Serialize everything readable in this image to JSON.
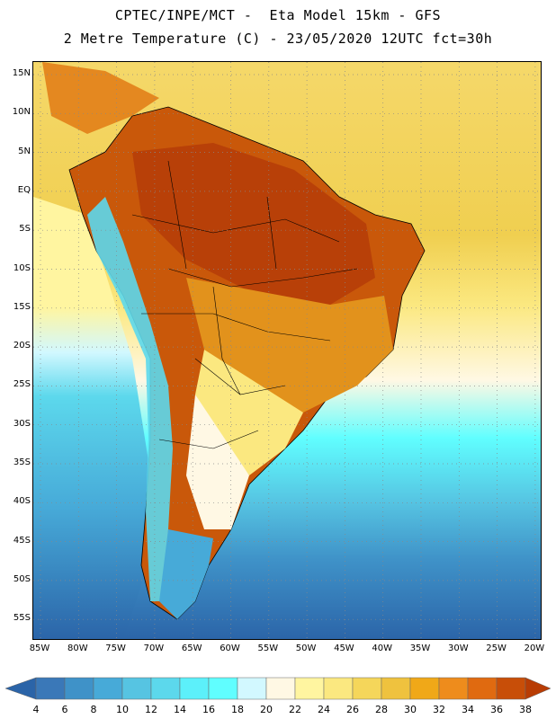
{
  "header": {
    "line1": "CPTEC/INPE/MCT -  Eta Model 15km - GFS",
    "line2": "2 Metre Temperature (C) - 23/05/2020 12UTC fct=30h"
  },
  "map": {
    "variable": "2 Metre Temperature",
    "units": "C",
    "lat_labels": [
      "15N",
      "10N",
      "5N",
      "EQ",
      "5S",
      "10S",
      "15S",
      "20S",
      "25S",
      "30S",
      "35S",
      "40S",
      "45S",
      "50S",
      "55S"
    ],
    "lon_labels": [
      "85W",
      "80W",
      "75W",
      "70W",
      "65W",
      "60W",
      "55W",
      "50W",
      "45W",
      "40W",
      "35W",
      "30W",
      "25W",
      "20W"
    ]
  },
  "colorbar": {
    "values": [
      "4",
      "6",
      "8",
      "10",
      "12",
      "14",
      "16",
      "18",
      "20",
      "22",
      "24",
      "26",
      "28",
      "30",
      "32",
      "34",
      "36",
      "38"
    ],
    "colors": [
      "#2b64a8",
      "#3a78b8",
      "#3f92c8",
      "#47aad8",
      "#56c4e2",
      "#5cd8ec",
      "#5cf0fa",
      "#60feff",
      "#d2f8ff",
      "#fff8e4",
      "#fff5a0",
      "#fbe880",
      "#f5d65a",
      "#efc23e",
      "#f0a818",
      "#ee8c1c",
      "#e06a10",
      "#c84e08",
      "#b83c04"
    ]
  }
}
